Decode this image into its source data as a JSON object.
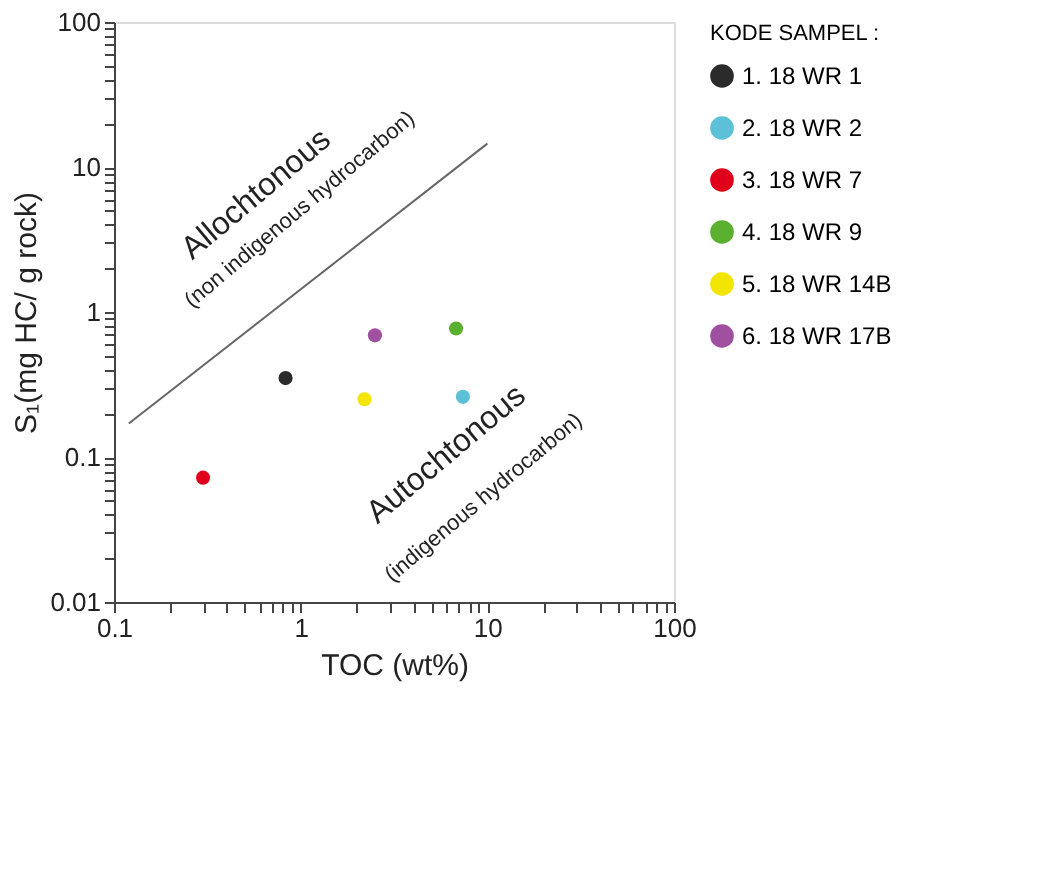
{
  "chart_data": {
    "type": "scatter",
    "xlabel": "TOC (wt%)",
    "ylabel": "S₁(mg HC/ g rock)",
    "legend_title": "KODE SAMPEL :",
    "legend": "right",
    "grid": false,
    "marker": "circle",
    "log": "xy",
    "xlim": [
      0.1,
      100
    ],
    "ylim": [
      0.01,
      100
    ],
    "xticks": [
      0.1,
      {
        "value": 0.2,
        "label": null
      },
      {
        "value": 0.3,
        "label": null
      },
      {
        "value": 0.4,
        "label": null
      },
      {
        "value": 0.5,
        "label": null
      },
      {
        "value": 0.6,
        "label": null
      },
      {
        "value": 0.7,
        "label": null
      },
      {
        "value": 0.8,
        "label": null
      },
      {
        "value": 0.9,
        "label": null
      },
      1,
      {
        "value": 2,
        "label": null
      },
      {
        "value": 3,
        "label": null
      },
      {
        "value": 4,
        "label": null
      },
      {
        "value": 5,
        "label": null
      },
      {
        "value": 6,
        "label": null
      },
      {
        "value": 7,
        "label": null
      },
      {
        "value": 8,
        "label": null
      },
      {
        "value": 9,
        "label": null
      },
      10,
      {
        "value": 20,
        "label": null
      },
      {
        "value": 30,
        "label": null
      },
      {
        "value": 40,
        "label": null
      },
      {
        "value": 50,
        "label": null
      },
      {
        "value": 60,
        "label": null
      },
      {
        "value": 70,
        "label": null
      },
      {
        "value": 80,
        "label": null
      },
      {
        "value": 90,
        "label": null
      },
      100
    ],
    "yticks": [
      0.01,
      {
        "value": 0.02,
        "label": null
      },
      {
        "value": 0.03,
        "label": null
      },
      {
        "value": 0.04,
        "label": null
      },
      {
        "value": 0.05,
        "label": null
      },
      {
        "value": 0.06,
        "label": null
      },
      {
        "value": 0.07,
        "label": null
      },
      {
        "value": 0.08,
        "label": null
      },
      {
        "value": 0.09,
        "label": null
      },
      0.1,
      {
        "value": 0.2,
        "label": null
      },
      {
        "value": 0.3,
        "label": null
      },
      {
        "value": 0.4,
        "label": null
      },
      {
        "value": 0.5,
        "label": null
      },
      {
        "value": 0.6,
        "label": null
      },
      {
        "value": 0.7,
        "label": null
      },
      {
        "value": 0.8,
        "label": null
      },
      {
        "value": 0.9,
        "label": null
      },
      1,
      {
        "value": 2,
        "label": null
      },
      {
        "value": 3,
        "label": null
      },
      {
        "value": 4,
        "label": null
      },
      {
        "value": 5,
        "label": null
      },
      {
        "value": 6,
        "label": null
      },
      {
        "value": 7,
        "label": null
      },
      {
        "value": 8,
        "label": null
      },
      {
        "value": 9,
        "label": null
      },
      10,
      {
        "value": 20,
        "label": null
      },
      {
        "value": 30,
        "label": null
      },
      {
        "value": 40,
        "label": null
      },
      {
        "value": 50,
        "label": null
      },
      {
        "value": 60,
        "label": null
      },
      {
        "value": 70,
        "label": null
      },
      {
        "value": 80,
        "label": null
      },
      {
        "value": 90,
        "label": null
      },
      100
    ],
    "annotations": [
      "Allochtonous",
      "(non indigenous hydrocarbon)",
      "Autochtonous",
      "(indigenous hydrocarbon)"
    ],
    "series": [
      {
        "name": "1. 18  WR 1",
        "color": "#2b2b2b",
        "x": [
          0.83
        ],
        "values": [
          0.35
        ]
      },
      {
        "name": "2. 18 WR 2",
        "color": "#5bc0d8",
        "x": [
          7.4
        ],
        "values": [
          0.26
        ]
      },
      {
        "name": "3. 18 WR 7",
        "color": "#e0001b",
        "x": [
          0.3
        ],
        "values": [
          0.072
        ]
      },
      {
        "name": "4. 18 WR 9",
        "color": "#5cb030",
        "x": [
          6.8
        ],
        "values": [
          0.77
        ]
      },
      {
        "name": "5. 18 WR 14B",
        "color": "#f2e600",
        "x": [
          2.2
        ],
        "values": [
          0.25
        ]
      },
      {
        "name": "6. 18 WR 17B",
        "color": "#a050a0",
        "x": [
          2.5
        ],
        "values": [
          0.69
        ]
      },
      {
        "type": "line",
        "marker": "none",
        "color": "#666666",
        "x": [
          0.12,
          10
        ],
        "values": [
          0.17,
          14.5
        ]
      }
    ]
  }
}
